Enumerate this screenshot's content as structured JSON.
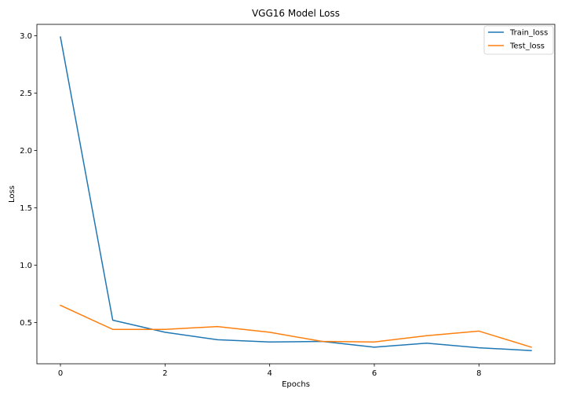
{
  "chart_data": {
    "type": "line",
    "title": "VGG16 Model Loss",
    "xlabel": "Epochs",
    "ylabel": "Loss",
    "x": [
      0,
      1,
      2,
      3,
      4,
      5,
      6,
      7,
      8,
      9
    ],
    "series": [
      {
        "name": "Train_loss",
        "color": "#1f77b4",
        "values": [
          2.99,
          0.52,
          0.415,
          0.35,
          0.33,
          0.335,
          0.285,
          0.32,
          0.28,
          0.255
        ]
      },
      {
        "name": "Test_loss",
        "color": "#ff7f0e",
        "values": [
          0.65,
          0.44,
          0.44,
          0.465,
          0.415,
          0.335,
          0.33,
          0.385,
          0.425,
          0.285
        ]
      }
    ],
    "xlim": [
      -0.45,
      9.45
    ],
    "ylim": [
      0.14,
      3.1
    ],
    "xticks": [
      0,
      2,
      4,
      6,
      8
    ],
    "xtick_labels": [
      "0",
      "2",
      "4",
      "6",
      "8"
    ],
    "yticks": [
      0.5,
      1.0,
      1.5,
      2.0,
      2.5,
      3.0
    ],
    "ytick_labels": [
      "0.5",
      "1.0",
      "1.5",
      "2.0",
      "2.5",
      "3.0"
    ],
    "grid": false,
    "legend_position": "upper-right"
  }
}
